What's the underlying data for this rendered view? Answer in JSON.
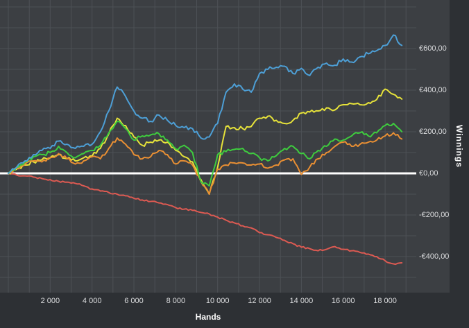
{
  "window": {
    "background": "#3c3f43",
    "panel_dark": "#2d3034",
    "grid_color": "#4d5156",
    "zero_line_color": "#ffffff",
    "tick_text_color": "#dcdddf",
    "axis_title_color": "#ffffff"
  },
  "chart_data": {
    "type": "line",
    "title": "",
    "xlabel": "Hands",
    "ylabel": "Winnings",
    "currency": "EUR",
    "grid": {
      "x_every": 1000,
      "y_every": 100,
      "visible": true
    },
    "axis": {
      "x_min": 0,
      "x_max": 19400,
      "y_min": -570,
      "y_max": 800,
      "y_axis_side": "right",
      "zero_line": true
    },
    "x_ticks": [
      {
        "value": 2000,
        "label": "2 000"
      },
      {
        "value": 4000,
        "label": "4 000"
      },
      {
        "value": 6000,
        "label": "6 000"
      },
      {
        "value": 8000,
        "label": "8 000"
      },
      {
        "value": 10000,
        "label": "10 000"
      },
      {
        "value": 12000,
        "label": "12 000"
      },
      {
        "value": 14000,
        "label": "14 000"
      },
      {
        "value": 16000,
        "label": "16 000"
      },
      {
        "value": 18000,
        "label": "18 000"
      }
    ],
    "y_ticks": [
      {
        "value": 600,
        "label": "€600,00"
      },
      {
        "value": 400,
        "label": "€400,00"
      },
      {
        "value": 200,
        "label": "€200,00"
      },
      {
        "value": 0,
        "label": "€0,00"
      },
      {
        "value": -200,
        "label": "-€200,00"
      },
      {
        "value": -400,
        "label": "-€400,00"
      }
    ],
    "x_step": 400,
    "series": [
      {
        "name": "series-red",
        "color": "#dd5a52",
        "jitter": 4,
        "values": [
          0,
          -8,
          -12,
          -18,
          -25,
          -30,
          -38,
          -42,
          -48,
          -60,
          -75,
          -85,
          -92,
          -100,
          -108,
          -120,
          -128,
          -135,
          -142,
          -150,
          -165,
          -172,
          -178,
          -188,
          -195,
          -210,
          -225,
          -238,
          -252,
          -262,
          -285,
          -295,
          -308,
          -322,
          -338,
          -355,
          -362,
          -372,
          -365,
          -352,
          -365,
          -372,
          -380,
          -388,
          -400,
          -420,
          -435,
          -430
        ]
      },
      {
        "name": "series-yellow",
        "color": "#e6e23a",
        "jitter": 9,
        "values": [
          0,
          20,
          40,
          55,
          65,
          75,
          90,
          70,
          60,
          75,
          83,
          120,
          190,
          265,
          230,
          175,
          135,
          150,
          160,
          150,
          110,
          80,
          55,
          -30,
          -100,
          30,
          225,
          220,
          215,
          225,
          265,
          275,
          255,
          240,
          255,
          290,
          295,
          300,
          315,
          305,
          330,
          335,
          330,
          340,
          355,
          405,
          380,
          357
        ]
      },
      {
        "name": "series-orange",
        "color": "#e98f33",
        "jitter": 8,
        "values": [
          0,
          25,
          45,
          60,
          55,
          75,
          95,
          70,
          45,
          60,
          80,
          70,
          120,
          170,
          140,
          90,
          70,
          80,
          110,
          90,
          45,
          60,
          40,
          -40,
          -100,
          20,
          40,
          50,
          50,
          40,
          45,
          25,
          40,
          65,
          70,
          -5,
          30,
          70,
          100,
          130,
          150,
          130,
          140,
          150,
          160,
          180,
          195,
          165
        ]
      },
      {
        "name": "series-green",
        "color": "#3ecc3e",
        "jitter": 9,
        "values": [
          0,
          30,
          55,
          80,
          90,
          100,
          130,
          100,
          75,
          95,
          110,
          135,
          195,
          250,
          215,
          160,
          180,
          185,
          190,
          160,
          117,
          135,
          100,
          -40,
          -60,
          90,
          105,
          115,
          120,
          95,
          75,
          60,
          85,
          120,
          130,
          95,
          70,
          110,
          130,
          165,
          160,
          180,
          195,
          180,
          195,
          230,
          240,
          200
        ]
      },
      {
        "name": "series-blue",
        "color": "#4d9fd6",
        "jitter": 10,
        "values": [
          0,
          30,
          60,
          90,
          110,
          120,
          155,
          140,
          120,
          130,
          140,
          200,
          300,
          415,
          370,
          300,
          265,
          250,
          280,
          255,
          230,
          220,
          215,
          170,
          175,
          240,
          390,
          430,
          405,
          390,
          480,
          500,
          510,
          515,
          480,
          505,
          470,
          510,
          530,
          520,
          550,
          535,
          560,
          575,
          590,
          615,
          665,
          615
        ]
      }
    ]
  }
}
